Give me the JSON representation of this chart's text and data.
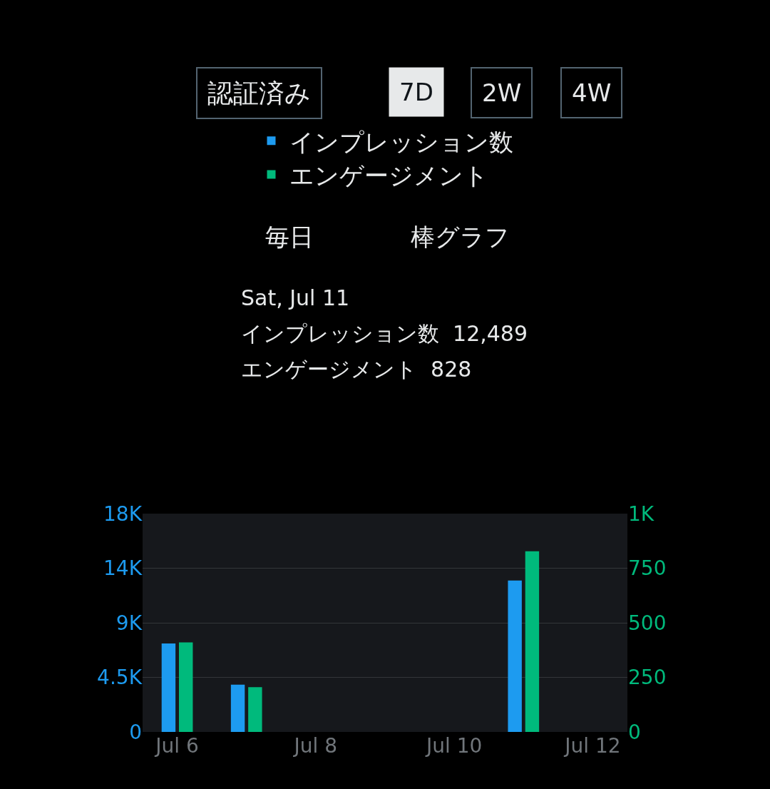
{
  "chart_data": {
    "type": "bar",
    "categories": [
      "Jul 6",
      null,
      "Jul 8",
      null,
      "Jul 10",
      null,
      "Jul 12"
    ],
    "series": [
      {
        "name": "インプレッション数",
        "color": "#1d9bf0",
        "values": [
          7300,
          3900,
          null,
          null,
          null,
          12489,
          null
        ]
      },
      {
        "name": "エンゲージメント",
        "color": "#00ba7c",
        "axis": "y2",
        "values": [
          410,
          205,
          null,
          null,
          null,
          828,
          null
        ]
      }
    ],
    "ylim": [
      0,
      18000
    ],
    "yticks": [
      0,
      {
        "value": 4500,
        "label": "4.5K"
      },
      {
        "value": 9000,
        "label": "9K"
      },
      {
        "value": 13500,
        "label": "14K"
      },
      {
        "value": 18000,
        "label": "18K"
      }
    ],
    "y2lim": [
      0,
      1000
    ],
    "y2ticks": [
      0,
      250,
      500,
      750,
      {
        "value": 1000,
        "label": "1K"
      }
    ],
    "grid": "y",
    "legend": "top",
    "annotations": [
      "認証済み",
      "7D",
      "2W",
      "4W",
      "毎日",
      "棒グラフ",
      "Sat, Jul 11",
      "インプレッション数  12,489",
      "エンゲージメント  828"
    ]
  }
}
